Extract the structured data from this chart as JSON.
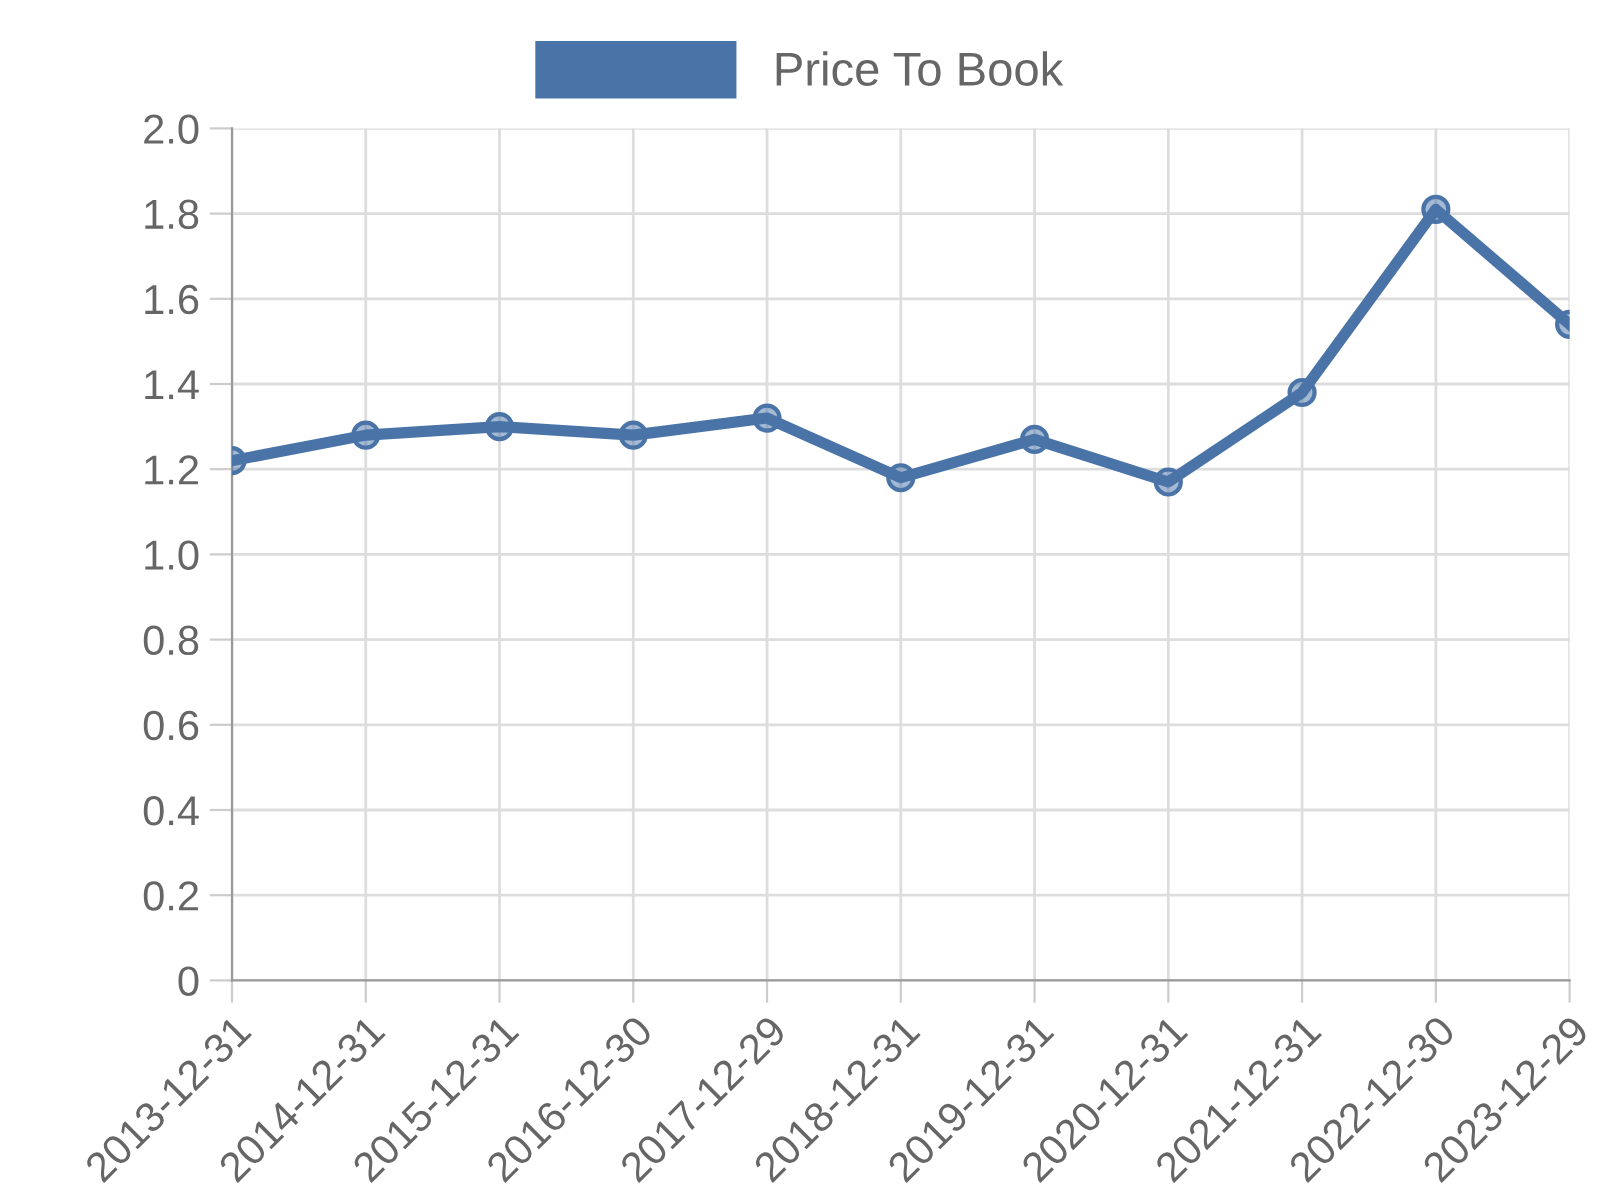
{
  "chart_data": {
    "type": "line",
    "categories": [
      "2013-12-31",
      "2014-12-31",
      "2015-12-31",
      "2016-12-30",
      "2017-12-29",
      "2018-12-31",
      "2019-12-31",
      "2020-12-31",
      "2021-12-31",
      "2022-12-30",
      "2023-12-29"
    ],
    "series": [
      {
        "name": "Price To Book",
        "color": "#4a74a8",
        "values": [
          1.22,
          1.28,
          1.3,
          1.28,
          1.32,
          1.18,
          1.27,
          1.17,
          1.38,
          1.81,
          1.54
        ]
      }
    ],
    "ylim": [
      0,
      2.0
    ],
    "yticks": [
      0,
      {
        "value": 0.2,
        "label": "0.2"
      },
      {
        "value": 0.4,
        "label": "0.4"
      },
      {
        "value": 0.6,
        "label": "0.6"
      },
      {
        "value": 0.8,
        "label": "0.8"
      },
      {
        "value": 1.0,
        "label": "1.0"
      },
      {
        "value": 1.2,
        "label": "1.2"
      },
      {
        "value": 1.4,
        "label": "1.4"
      },
      {
        "value": 1.6,
        "label": "1.6"
      },
      {
        "value": 1.8,
        "label": "1.8"
      },
      {
        "value": 2.0,
        "label": "2.0"
      }
    ],
    "grid": true,
    "legend": "top",
    "marker": "circle",
    "line_style": "solid"
  }
}
